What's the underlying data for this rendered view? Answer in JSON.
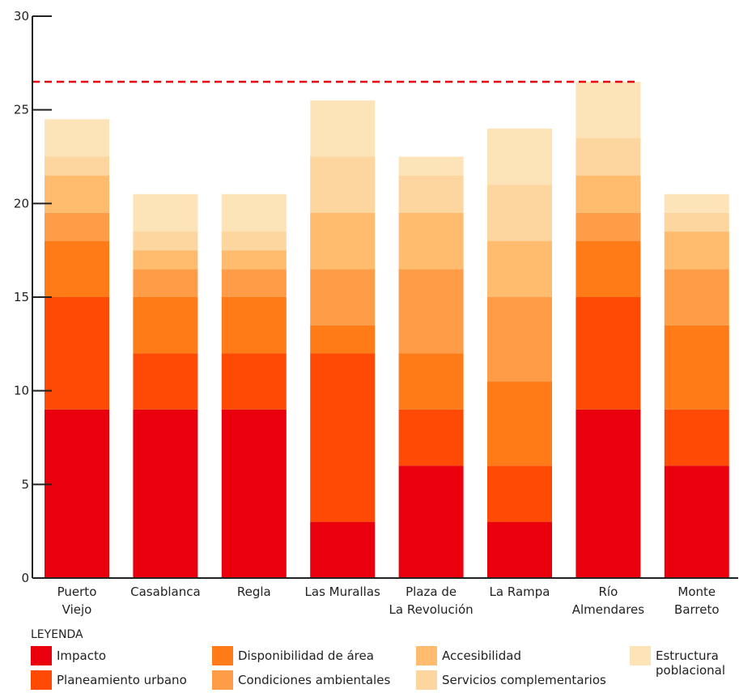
{
  "chart_data": {
    "type": "bar",
    "stacked": true,
    "categories": [
      [
        "Puerto",
        "Viejo"
      ],
      [
        "Casablanca"
      ],
      [
        "Regla"
      ],
      [
        "Las Murallas"
      ],
      [
        "Plaza de",
        "La Revolución"
      ],
      [
        "La Rampa"
      ],
      [
        "Río",
        "Almendares"
      ],
      [
        "Monte",
        "Barreto"
      ]
    ],
    "series": [
      {
        "name": "Impacto",
        "color": "#e9000c",
        "values": [
          9,
          9,
          9,
          3,
          6,
          3,
          9,
          6
        ]
      },
      {
        "name": "Planeamiento urbano",
        "color": "#ff4a05",
        "values": [
          6,
          3,
          3,
          9,
          3,
          3,
          6,
          3
        ]
      },
      {
        "name": "Disponibilidad de área",
        "color": "#fe7b18",
        "values": [
          3,
          3,
          3,
          1.5,
          3,
          4.5,
          3,
          4.5
        ]
      },
      {
        "name": "Condiciones ambientales",
        "color": "#ff9c47",
        "values": [
          1.5,
          1.5,
          1.5,
          3,
          4.5,
          4.5,
          1.5,
          3
        ]
      },
      {
        "name": "Accesibilidad",
        "color": "#ffbb6e",
        "values": [
          2,
          1,
          1,
          3,
          3,
          3,
          2,
          2
        ]
      },
      {
        "name": "Servicios complementarios",
        "color": "#fdd59f",
        "values": [
          1,
          1,
          1,
          3,
          2,
          3,
          2,
          1
        ]
      },
      {
        "name": "Estructura poblacional",
        "color": "#fde4b8",
        "values": [
          2,
          2,
          2,
          3,
          1,
          3,
          3,
          1
        ]
      }
    ],
    "ylim": [
      0,
      30
    ],
    "yticks": [
      0,
      5,
      10,
      15,
      20,
      25,
      30
    ],
    "threshold": 26.5,
    "threshold_color": "#e9000c",
    "grid": false,
    "legend_title": "LEYENDA",
    "legend_placement": "bottom"
  },
  "legend_labels": {
    "impacto": "Impacto",
    "planeamiento": "Planeamiento urbano",
    "disponibilidad": "Disponibilidad de área",
    "condiciones": "Condiciones ambientales",
    "accesibilidad": "Accesibilidad",
    "servicios": "Servicios complementarios",
    "estructura": "Estructura\npoblacional"
  }
}
